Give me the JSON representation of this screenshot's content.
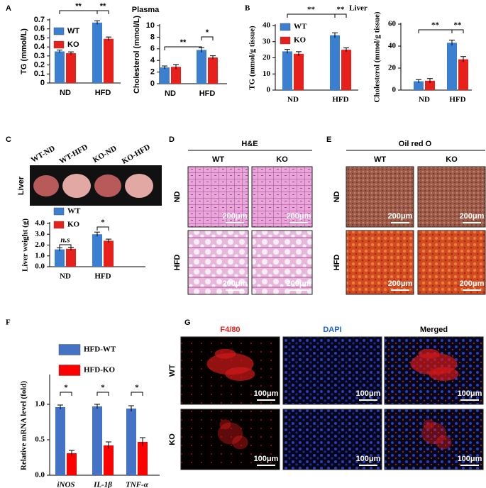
{
  "chart_data": [
    {
      "type": "bar",
      "panel_label": "A",
      "title": "Plasma",
      "ylabel": "TG (mmol/L)",
      "categories": [
        "ND",
        "HFD"
      ],
      "series": [
        {
          "name": "WT",
          "color": "#3a7fd0",
          "values": [
            0.35,
            0.67
          ],
          "errors": [
            0.015,
            0.02
          ]
        },
        {
          "name": "KO",
          "color": "#e8201c",
          "values": [
            0.33,
            0.49
          ],
          "errors": [
            0.015,
            0.02
          ]
        }
      ],
      "ylim": [
        0,
        0.7
      ],
      "yticks": [
        0,
        0.1,
        0.2,
        0.3,
        0.4,
        0.5,
        0.6,
        0.7
      ],
      "legend": "upper left",
      "annotations": [
        "**",
        "**"
      ]
    },
    {
      "type": "bar",
      "ylabel": "Cholesterol (mmol/L)",
      "categories": [
        "ND",
        "HFD"
      ],
      "series": [
        {
          "color": "#3a7fd0",
          "values": [
            2.8,
            5.8
          ],
          "errors": [
            0.25,
            0.4
          ]
        },
        {
          "color": "#e8201c",
          "values": [
            2.9,
            4.5
          ],
          "errors": [
            0.4,
            0.3
          ]
        }
      ],
      "ylim": [
        0,
        10
      ],
      "yticks": [
        0,
        2,
        4,
        6,
        8,
        10
      ],
      "annotations": [
        "**",
        "*"
      ]
    },
    {
      "type": "bar",
      "panel_label": "B",
      "title": "Liver",
      "ylabel": "TG (mmol/g tissue)",
      "categories": [
        "ND",
        "HFD"
      ],
      "series": [
        {
          "name": "WT",
          "color": "#3a7fd0",
          "values": [
            24,
            34
          ],
          "errors": [
            1.2,
            1.5
          ]
        },
        {
          "name": "KO",
          "color": "#e8201c",
          "values": [
            22.5,
            25
          ],
          "errors": [
            1.3,
            1.2
          ]
        }
      ],
      "ylim": [
        0,
        40
      ],
      "yticks": [
        0,
        10,
        20,
        30,
        40
      ],
      "legend": "upper left",
      "annotations": [
        "**",
        "**"
      ]
    },
    {
      "type": "bar",
      "ylabel": "Cholesterol (mmol/g tissue)",
      "categories": [
        "ND",
        "HFD"
      ],
      "series": [
        {
          "color": "#3a7fd0",
          "values": [
            8,
            43
          ],
          "errors": [
            1.5,
            2.5
          ]
        },
        {
          "color": "#e8201c",
          "values": [
            8.5,
            28
          ],
          "errors": [
            2,
            2.5
          ]
        }
      ],
      "ylim": [
        0,
        60
      ],
      "yticks": [
        0,
        20,
        40,
        60
      ],
      "annotations": [
        "**",
        "**"
      ]
    },
    {
      "type": "bar",
      "ylabel": "Liver weight (g)",
      "categories": [
        "ND",
        "HFD"
      ],
      "series": [
        {
          "name": "WT",
          "color": "#3a7fd0",
          "values": [
            1.6,
            3.0
          ],
          "errors": [
            0.15,
            0.2
          ]
        },
        {
          "name": "KO",
          "color": "#e8201c",
          "values": [
            1.65,
            2.4
          ],
          "errors": [
            0.15,
            0.15
          ]
        }
      ],
      "ylim": [
        0,
        4.0
      ],
      "yticks": [
        {
          "value": 0,
          "label": "0.0"
        },
        {
          "value": 1,
          "label": "1.0"
        },
        {
          "value": 2,
          "label": "2.0"
        },
        {
          "value": 3,
          "label": "3.0"
        },
        {
          "value": 4,
          "label": "4.0"
        }
      ],
      "legend": "upper left",
      "annotations": [
        "n.s",
        "*"
      ]
    },
    {
      "type": "bar",
      "panel_label": "F",
      "ylabel": "Relative mRNA level (fold)",
      "categories": [
        "iNOS",
        "IL-1β",
        "TNF-α"
      ],
      "series": [
        {
          "name": "HFD-WT",
          "color": "#4472c4",
          "values": [
            0.96,
            0.97,
            0.94
          ],
          "errors": [
            0.03,
            0.03,
            0.04
          ]
        },
        {
          "name": "HFD-KO",
          "color": "#ff0000",
          "values": [
            0.31,
            0.42,
            0.47
          ],
          "errors": [
            0.04,
            0.05,
            0.06
          ]
        }
      ],
      "ylim": [
        0,
        1.4
      ],
      "yticks": [
        {
          "value": 0,
          "label": "0.0"
        },
        {
          "value": 0.5,
          "label": "0.5"
        },
        {
          "value": 1,
          "label": "1.0"
        }
      ],
      "legend": "upper left",
      "annotations": [
        "*",
        "*",
        "*"
      ]
    }
  ],
  "liver_photo": {
    "panel_label": "C",
    "organ": "Liver",
    "samples": [
      "WT-ND",
      "WT-HFD",
      "KO-ND",
      "KO-HFD"
    ]
  },
  "image_panels": [
    {
      "panel_label": "D",
      "title": "H&E",
      "columns": [
        "WT",
        "KO"
      ],
      "rows": [
        "ND",
        "HFD"
      ],
      "scale_labels": [
        "200μm",
        "200μm",
        "200μm",
        "200μm"
      ]
    },
    {
      "panel_label": "E",
      "title": "Oil red O",
      "columns": [
        "WT",
        "KO"
      ],
      "rows": [
        "ND",
        "HFD"
      ],
      "scale_labels": [
        "200μm",
        "200μm",
        "200μm",
        "200μm"
      ]
    },
    {
      "panel_label": "G",
      "columns": [
        "F4/80",
        "DAPI",
        "Merged"
      ],
      "rows": [
        "WT",
        "KO"
      ],
      "scale_labels": [
        "100μm",
        "100μm",
        "100μm",
        "100μm",
        "100μm",
        "100μm"
      ]
    }
  ]
}
